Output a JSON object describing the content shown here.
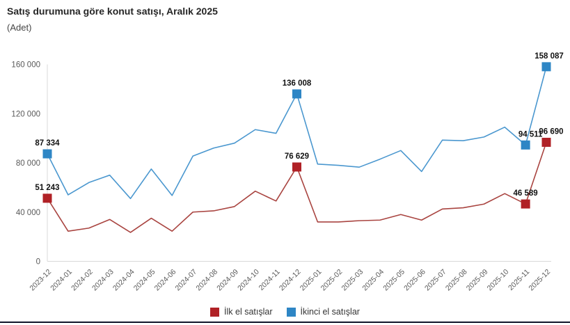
{
  "title": "Satış durumuna göre konut satışı, Aralık 2025",
  "subtitle": "(Adet)",
  "legend": [
    {
      "label": "İlk el satışlar",
      "color": "#b02126"
    },
    {
      "label": "İkinci el satışlar",
      "color": "#2e86c5"
    }
  ],
  "colors": {
    "axis_line": "#d9d9d9",
    "tick_text": "#595959",
    "data_label": "#111111",
    "bottom_rule": "#11152a"
  },
  "chart_data": {
    "type": "line",
    "title": "Satış durumuna göre konut satışı, Aralık 2025",
    "ylabel": "(Adet)",
    "xlabel": "",
    "grid": false,
    "legend_position": "bottom",
    "ylim": [
      0,
      160000
    ],
    "yticks": [
      0,
      40000,
      80000,
      120000,
      160000
    ],
    "categories": [
      "2023-12",
      "2024-01",
      "2024-02",
      "2024-03",
      "2024-04",
      "2024-05",
      "2024-06",
      "2024-07",
      "2024-08",
      "2024-09",
      "2024-10",
      "2024-11",
      "2024-12",
      "2025-01",
      "2025-02",
      "2025-03",
      "2025-04",
      "2025-05",
      "2025-06",
      "2025-07",
      "2025-08",
      "2025-09",
      "2025-10",
      "2025-11",
      "2025-12"
    ],
    "series": [
      {
        "name": "İlk el satışlar",
        "line_color": "#a94440",
        "marker_color": "#b02126",
        "values": [
          51243,
          24500,
          27000,
          34000,
          23500,
          35000,
          24500,
          40000,
          41000,
          44500,
          57000,
          49000,
          76629,
          32000,
          32000,
          33000,
          33500,
          38000,
          33500,
          42500,
          43500,
          46500,
          55000,
          46589,
          96690
        ]
      },
      {
        "name": "İkinci el satışlar",
        "line_color": "#4a97cf",
        "marker_color": "#2e86c5",
        "values": [
          87334,
          54000,
          64000,
          70000,
          51000,
          75000,
          53500,
          85500,
          92000,
          96000,
          107000,
          104000,
          136008,
          79000,
          78000,
          76500,
          83000,
          90000,
          73000,
          98500,
          98000,
          101000,
          109000,
          94511,
          158087
        ]
      }
    ],
    "annotations": [
      {
        "series": 1,
        "index": 0,
        "label": "87 334"
      },
      {
        "series": 0,
        "index": 0,
        "label": "51 243"
      },
      {
        "series": 1,
        "index": 12,
        "label": "136 008"
      },
      {
        "series": 0,
        "index": 12,
        "label": "76 629"
      },
      {
        "series": 1,
        "index": 23,
        "label": "94 511",
        "dx": 7
      },
      {
        "series": 0,
        "index": 23,
        "label": "46 589"
      },
      {
        "series": 1,
        "index": 24,
        "label": "158 087",
        "dx": 4
      },
      {
        "series": 0,
        "index": 24,
        "label": "96 690",
        "dx": 7
      }
    ]
  }
}
